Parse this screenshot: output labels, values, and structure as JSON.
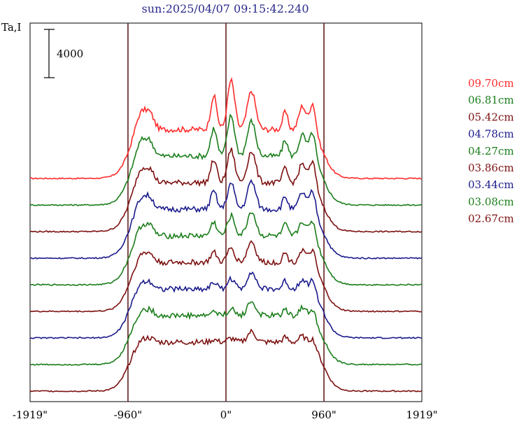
{
  "chart_data": {
    "type": "line",
    "title": "sun:2025/04/07 09:15:42.240",
    "ylabel": "Ta,I",
    "scale_bar_label": "4000",
    "xlim": [
      -1919,
      1919
    ],
    "x_ticks": [
      {
        "value": -1919,
        "label": "-1919\""
      },
      {
        "value": -960,
        "label": "-960\""
      },
      {
        "value": 0,
        "label": "0\""
      },
      {
        "value": 960,
        "label": "960\""
      },
      {
        "value": 1919,
        "label": "1919\""
      }
    ],
    "vertical_lines": [
      -960,
      0,
      960
    ],
    "grid": false,
    "legend_position": "right",
    "series": [
      {
        "name": "09.70cm",
        "color": "#ff2a2a"
      },
      {
        "name": "06.81cm",
        "color": "#1a7d1a"
      },
      {
        "name": "05.42cm",
        "color": "#7d1010"
      },
      {
        "name": "04.78cm",
        "color": "#1a1a8c"
      },
      {
        "name": "04.27cm",
        "color": "#1a7d1a"
      },
      {
        "name": "03.86cm",
        "color": "#7d1010"
      },
      {
        "name": "03.44cm",
        "color": "#1a1a8c"
      },
      {
        "name": "03.08cm",
        "color": "#1a7d1a"
      },
      {
        "name": "02.67cm",
        "color": "#7d1010"
      }
    ]
  }
}
